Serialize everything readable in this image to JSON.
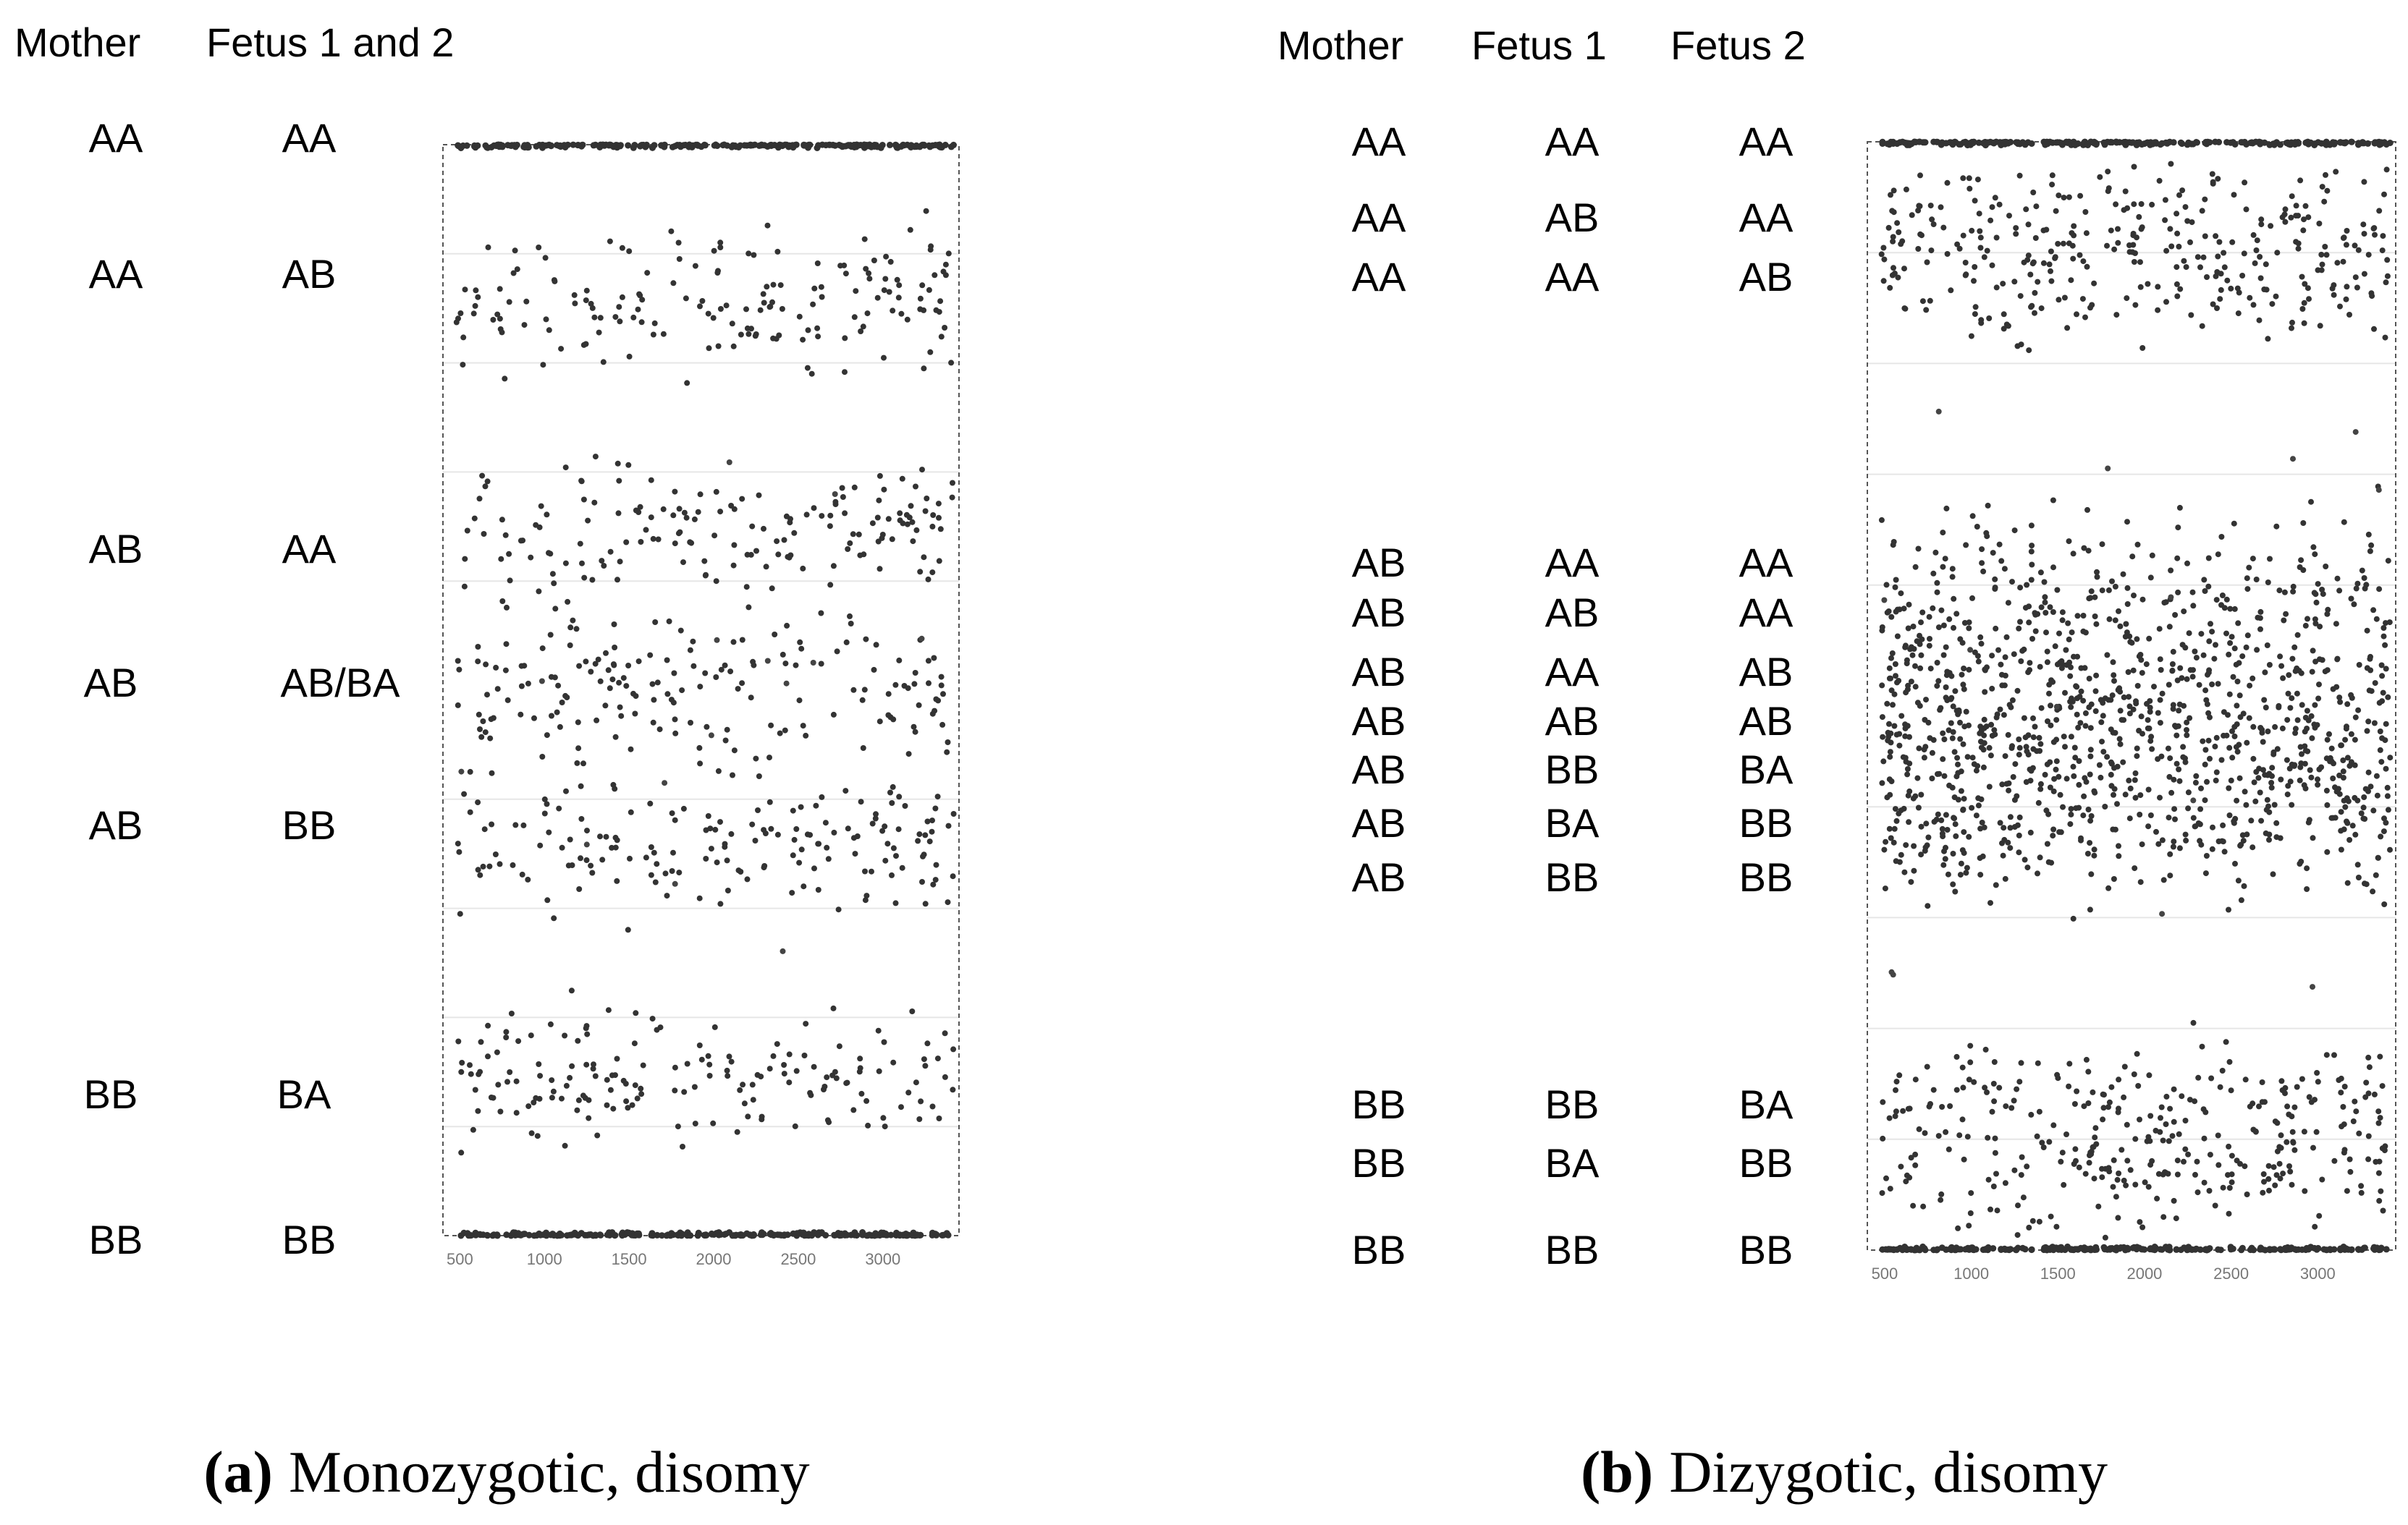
{
  "chart_data": [
    {
      "type": "scatter",
      "caption_label": "(a)",
      "caption_text": "Monozygotic, disomy",
      "columns": [
        "Mother",
        "Fetus 1 and 2"
      ],
      "x_ticks": [
        500,
        1000,
        1500,
        2000,
        2500,
        3000
      ],
      "xlim": [
        400,
        3450
      ],
      "ylim": [
        0,
        1
      ],
      "grid": true,
      "groups": [
        {
          "genotypes": [
            "AA",
            "AA"
          ],
          "center": 0.0,
          "spread": 0.0
        },
        {
          "genotypes": [
            "AA",
            "AB"
          ],
          "center": 0.145,
          "spread": 0.06
        },
        {
          "genotypes": [
            "AB",
            "AA"
          ],
          "center": 0.355,
          "spread": 0.06
        },
        {
          "genotypes": [
            "AB",
            "AB/BA"
          ],
          "center": 0.5,
          "spread": 0.055
        },
        {
          "genotypes": [
            "AB",
            "BB"
          ],
          "center": 0.645,
          "spread": 0.06
        },
        {
          "genotypes": [
            "BB",
            "BA"
          ],
          "center": 0.855,
          "spread": 0.055
        },
        {
          "genotypes": [
            "BB",
            "BB"
          ],
          "center": 1.0,
          "spread": 0.0
        }
      ]
    },
    {
      "type": "scatter",
      "caption_label": "(b)",
      "caption_text": "Dizygotic, disomy",
      "columns": [
        "Mother",
        "Fetus 1",
        "Fetus 2"
      ],
      "x_ticks": [
        500,
        1000,
        1500,
        2000,
        2500,
        3000
      ],
      "xlim": [
        400,
        3450
      ],
      "ylim": [
        0,
        1
      ],
      "grid": true,
      "groups": [
        {
          "genotypes": [
            "AA",
            "AA",
            "AA"
          ],
          "center": 0.0,
          "spread": 0.0
        },
        {
          "genotypes": [
            "AA",
            "AB",
            "AA"
          ],
          "center": 0.07,
          "spread": 0.045
        },
        {
          "genotypes": [
            "AA",
            "AA",
            "AB"
          ],
          "center": 0.13,
          "spread": 0.05
        },
        {
          "genotypes": [
            "AB",
            "AA",
            "AA"
          ],
          "center": 0.4,
          "spread": 0.07
        },
        {
          "genotypes": [
            "AB",
            "AB",
            "AA"
          ],
          "center": 0.45,
          "spread": 0.06
        },
        {
          "genotypes": [
            "AB",
            "AA",
            "AB"
          ],
          "center": 0.5,
          "spread": 0.06
        },
        {
          "genotypes": [
            "AB",
            "AB",
            "AB"
          ],
          "center": 0.52,
          "spread": 0.06
        },
        {
          "genotypes": [
            "AB",
            "BB",
            "BA"
          ],
          "center": 0.55,
          "spread": 0.06
        },
        {
          "genotypes": [
            "AB",
            "BA",
            "BB"
          ],
          "center": 0.6,
          "spread": 0.06
        },
        {
          "genotypes": [
            "AB",
            "BB",
            "BB"
          ],
          "center": 0.63,
          "spread": 0.06
        },
        {
          "genotypes": [
            "BB",
            "BB",
            "BA"
          ],
          "center": 0.87,
          "spread": 0.045
        },
        {
          "genotypes": [
            "BB",
            "BA",
            "BB"
          ],
          "center": 0.93,
          "spread": 0.045
        },
        {
          "genotypes": [
            "BB",
            "BB",
            "BB"
          ],
          "center": 1.0,
          "spread": 0.0
        }
      ]
    }
  ]
}
